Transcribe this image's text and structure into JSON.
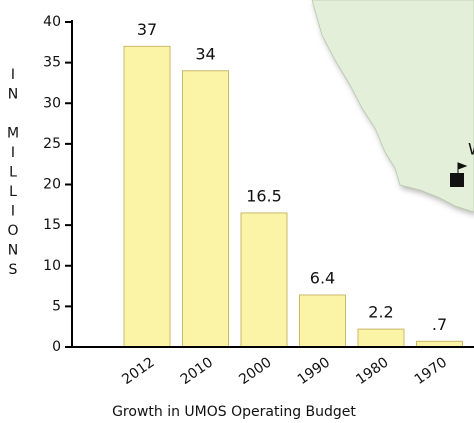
{
  "chart_data": {
    "type": "bar",
    "title": "Growth in UMOS Operating Budget",
    "y_label": "IN MILLIONS",
    "annotations": [
      "W"
    ],
    "categories": [
      "2012",
      "2010",
      "2000",
      "1990",
      "1980",
      "1970"
    ],
    "values": [
      37,
      34,
      16.5,
      6.4,
      2.2,
      0.7
    ],
    "value_labels": [
      "37",
      "34",
      "16.5",
      "6.4",
      "2.2",
      ".7"
    ],
    "color": "#fbf3a6",
    "ylim": [
      0,
      40
    ],
    "yticks": [
      0,
      5,
      10,
      15,
      20,
      25,
      30,
      35,
      40
    ]
  }
}
